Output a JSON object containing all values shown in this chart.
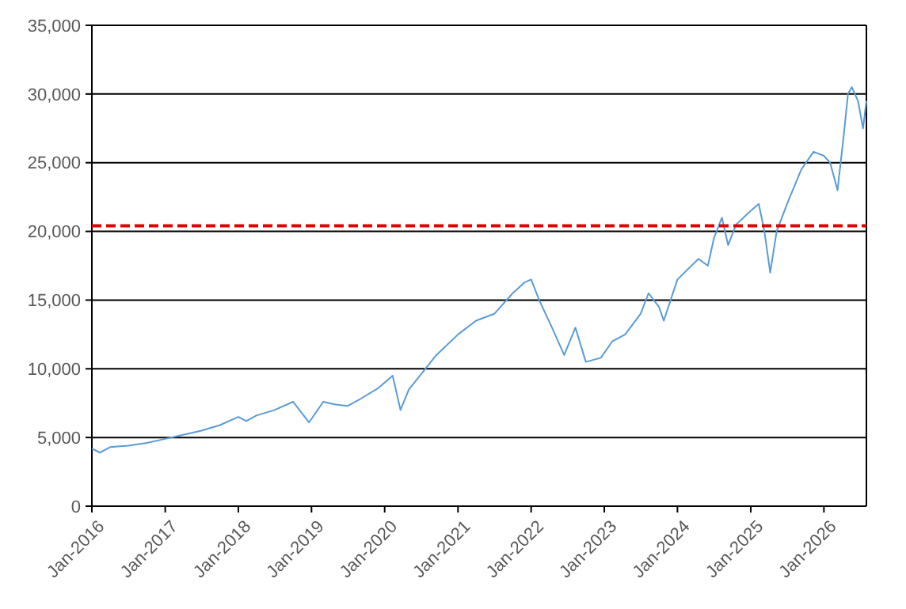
{
  "chart_data": {
    "type": "line",
    "xlim": [
      "2016-01",
      "2026-08"
    ],
    "xticks": [
      {
        "value": "2016-01",
        "label": "Jan-2016"
      },
      {
        "value": "2017-01",
        "label": "Jan-2017"
      },
      {
        "value": "2018-01",
        "label": "Jan-2018"
      },
      {
        "value": "2019-01",
        "label": "Jan-2019"
      },
      {
        "value": "2020-01",
        "label": "Jan-2020"
      },
      {
        "value": "2021-01",
        "label": "Jan-2021"
      },
      {
        "value": "2022-01",
        "label": "Jan-2022"
      },
      {
        "value": "2023-01",
        "label": "Jan-2023"
      },
      {
        "value": "2024-01",
        "label": "Jan-2024"
      },
      {
        "value": "2025-01",
        "label": "Jan-2025"
      },
      {
        "value": "2026-01",
        "label": "Jan-2026"
      }
    ],
    "ylim": [
      0,
      35000
    ],
    "yticks": [
      0,
      {
        "value": 5000,
        "label": "5,000"
      },
      {
        "value": 10000,
        "label": "10,000"
      },
      {
        "value": 15000,
        "label": "15,000"
      },
      {
        "value": 20000,
        "label": "20,000"
      },
      {
        "value": 25000,
        "label": "25,000"
      },
      {
        "value": 30000,
        "label": "30,000"
      },
      {
        "value": 35000,
        "label": "35,000"
      }
    ],
    "grid": "y",
    "marker": "none",
    "line_style": "solid",
    "x": [
      "2016-01-01",
      "2016-02-10",
      "2016-04-01",
      "2016-07-01",
      "2016-10-01",
      "2017-01-01",
      "2017-04-01",
      "2017-07-01",
      "2017-10-01",
      "2018-01-01",
      "2018-02-10",
      "2018-04-01",
      "2018-07-01",
      "2018-10-01",
      "2018-12-20",
      "2019-03-01",
      "2019-05-01",
      "2019-07-01",
      "2019-09-01",
      "2019-12-01",
      "2020-02-10",
      "2020-03-20",
      "2020-05-01",
      "2020-07-01",
      "2020-09-15",
      "2021-01-01",
      "2021-04-01",
      "2021-07-01",
      "2021-10-01",
      "2021-12-01",
      "2022-01-01",
      "2022-02-10",
      "2022-04-15",
      "2022-06-15",
      "2022-08-10",
      "2022-10-01",
      "2022-12-15",
      "2023-02-10",
      "2023-04-15",
      "2023-07-01",
      "2023-08-10",
      "2023-10-01",
      "2023-10-25",
      "2024-01-01",
      "2024-04-15",
      "2024-06-01",
      "2024-07-01",
      "2024-08-10",
      "2024-09-10",
      "2024-10-20",
      "2025-01-01",
      "2025-02-10",
      "2025-03-10",
      "2025-04-08",
      "2025-05-10",
      "2025-07-01",
      "2025-09-10",
      "2025-11-10",
      "2026-01-01",
      "2026-02-01",
      "2026-03-10",
      "2026-04-10",
      "2026-05-01",
      "2026-05-20",
      "2026-06-20",
      "2026-07-15",
      "2026-08-01"
    ],
    "series": [
      {
        "color": "#5b9bd5",
        "values": [
          4200,
          3900,
          4300,
          4400,
          4600,
          4900,
          5200,
          5500,
          5900,
          6500,
          6200,
          6600,
          7000,
          7600,
          6100,
          7600,
          7400,
          7300,
          7800,
          8600,
          9500,
          7000,
          8500,
          9600,
          11000,
          12500,
          13500,
          14000,
          15500,
          16300,
          16500,
          15000,
          13000,
          11000,
          13000,
          10500,
          10800,
          12000,
          12500,
          14000,
          15500,
          14500,
          13500,
          16500,
          18000,
          17500,
          19500,
          21000,
          19000,
          20500,
          21500,
          22000,
          20000,
          17000,
          20000,
          22000,
          24500,
          25800,
          25500,
          25000,
          23000,
          27000,
          30000,
          30500,
          29500,
          27500,
          29500
        ]
      }
    ],
    "ref_lines": [
      {
        "axis": "y",
        "value": 20400,
        "color": "#e00000",
        "line_style": "dashed"
      }
    ]
  }
}
